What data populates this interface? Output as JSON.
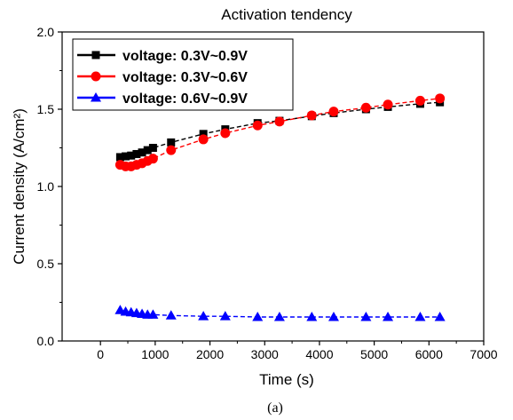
{
  "chart_data": {
    "type": "line",
    "title": "Activation tendency",
    "xlabel": "Time (s)",
    "ylabel": "Current density (A/cm²)",
    "caption": "(a)",
    "xlim": [
      -700,
      7000
    ],
    "ylim": [
      0.0,
      2.0
    ],
    "xticks": [
      0,
      1000,
      2000,
      3000,
      4000,
      5000,
      6000,
      7000
    ],
    "yticks": [
      0.0,
      0.5,
      1.0,
      1.5,
      2.0
    ],
    "xtick_labels": [
      "0",
      "1000",
      "2000",
      "3000",
      "4000",
      "5000",
      "6000",
      "7000"
    ],
    "ytick_labels": [
      "0.0",
      "0.5",
      "1.0",
      "1.5",
      "2.0"
    ],
    "legend_position": "top-left",
    "grid": false,
    "series": [
      {
        "name": "voltage: 0.3V~0.9V",
        "color": "#000000",
        "marker": "square",
        "x": [
          360,
          460,
          560,
          660,
          760,
          860,
          960,
          1290,
          1880,
          2280,
          2870,
          3270,
          3860,
          4260,
          4850,
          5250,
          5840,
          6200
        ],
        "y": [
          1.19,
          1.195,
          1.2,
          1.21,
          1.22,
          1.235,
          1.25,
          1.285,
          1.34,
          1.37,
          1.41,
          1.425,
          1.455,
          1.475,
          1.5,
          1.515,
          1.535,
          1.545
        ]
      },
      {
        "name": "voltage: 0.3V~0.6V",
        "color": "#ff0000",
        "marker": "circle",
        "x": [
          360,
          460,
          560,
          660,
          760,
          860,
          960,
          1290,
          1880,
          2280,
          2870,
          3270,
          3860,
          4260,
          4850,
          5250,
          5840,
          6200
        ],
        "y": [
          1.14,
          1.13,
          1.13,
          1.14,
          1.15,
          1.165,
          1.18,
          1.235,
          1.305,
          1.345,
          1.395,
          1.42,
          1.46,
          1.485,
          1.51,
          1.53,
          1.555,
          1.57
        ]
      },
      {
        "name": "voltage: 0.6V~0.9V",
        "color": "#0000ff",
        "marker": "triangle",
        "x": [
          360,
          460,
          560,
          660,
          760,
          860,
          960,
          1290,
          1880,
          2280,
          2870,
          3270,
          3860,
          4260,
          4850,
          5250,
          5840,
          6200
        ],
        "y": [
          0.2,
          0.19,
          0.185,
          0.18,
          0.175,
          0.17,
          0.17,
          0.165,
          0.16,
          0.16,
          0.155,
          0.155,
          0.155,
          0.155,
          0.155,
          0.155,
          0.155,
          0.155
        ]
      }
    ]
  }
}
